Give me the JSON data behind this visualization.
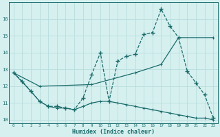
{
  "xlabel": "Humidex (Indice chaleur)",
  "background_color": "#d5f0ef",
  "grid_color": "#b8dedd",
  "line_color": "#1a6b6b",
  "xlim": [
    -0.5,
    23.5
  ],
  "ylim": [
    9.8,
    17.0
  ],
  "yticks": [
    10,
    11,
    12,
    13,
    14,
    15,
    16
  ],
  "xticks": [
    0,
    1,
    2,
    3,
    4,
    5,
    6,
    7,
    8,
    9,
    10,
    11,
    12,
    13,
    14,
    15,
    16,
    17,
    18,
    19,
    20,
    21,
    22,
    23
  ],
  "series1_x": [
    0,
    1,
    2,
    3,
    4,
    5,
    6,
    7,
    8,
    9,
    10,
    11,
    12,
    13,
    14,
    15,
    16,
    17,
    18,
    19,
    20,
    21,
    22,
    23
  ],
  "series1_y": [
    12.8,
    12.3,
    11.7,
    11.1,
    10.8,
    10.8,
    10.7,
    10.6,
    11.3,
    12.7,
    14.0,
    11.1,
    13.5,
    13.8,
    13.9,
    15.1,
    15.2,
    16.6,
    15.6,
    14.9,
    12.9,
    12.2,
    11.5,
    10.1
  ],
  "series2_x": [
    0,
    3,
    9,
    14,
    17,
    19,
    23
  ],
  "series2_y": [
    12.8,
    12.0,
    12.1,
    12.8,
    13.3,
    14.9,
    14.9
  ],
  "series3_x": [
    0,
    2,
    3,
    4,
    5,
    6,
    7,
    8,
    9,
    10,
    11,
    12,
    13,
    14,
    15,
    16,
    17,
    18,
    19,
    20,
    21,
    22,
    23
  ],
  "series3_y": [
    12.8,
    11.7,
    11.1,
    10.8,
    10.7,
    10.7,
    10.6,
    10.8,
    11.0,
    11.1,
    11.1,
    11.0,
    10.9,
    10.8,
    10.7,
    10.6,
    10.5,
    10.4,
    10.3,
    10.2,
    10.1,
    10.1,
    10.0
  ]
}
